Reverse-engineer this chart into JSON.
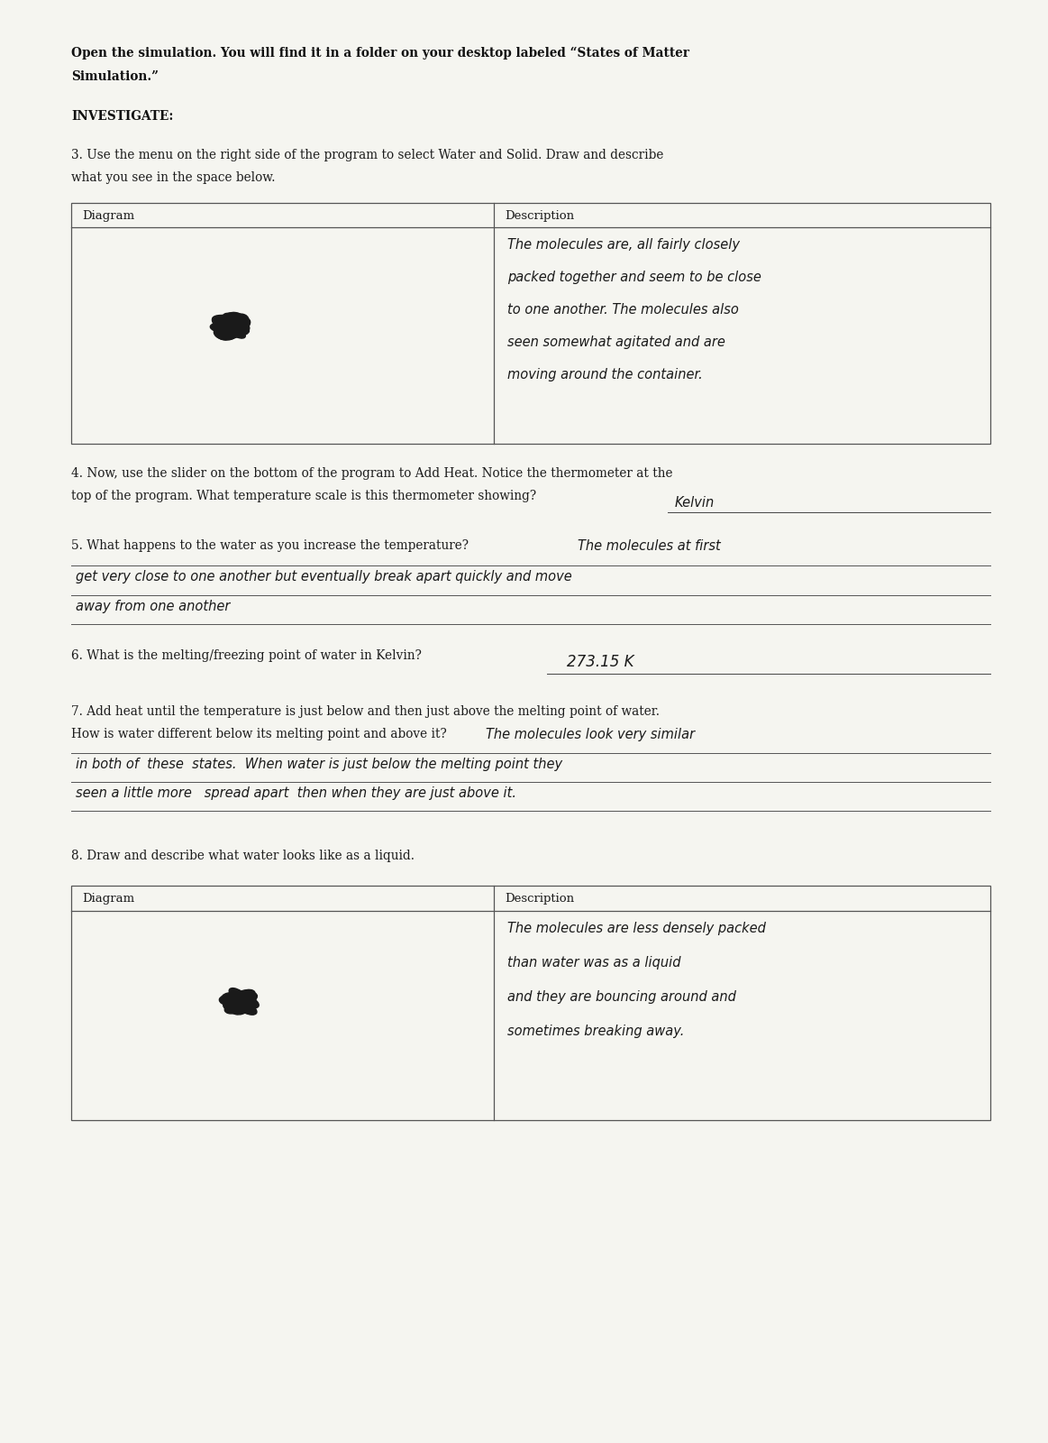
{
  "background_color": "#f5f5f0",
  "page_width": 11.63,
  "page_height": 16.0,
  "dpi": 100,
  "lm": 0.068,
  "rm": 0.945,
  "tc": "#1c1c1c",
  "hc": "#111111",
  "intro_line1": "Open the simulation. You will find it in a folder on your desktop labeled “States of Matter",
  "intro_line2": "Simulation.”",
  "investigate_label": "INVESTIGATE:",
  "q3_line1": "3. Use the menu on the right side of the program to select Water and Solid. Draw and describe",
  "q3_line2": "what you see in the space below.",
  "tbl1_hdr_left": "Diagram",
  "tbl1_hdr_right": "Description",
  "tbl1_desc_lines": [
    "The molecules are, all fairly closely",
    "packed together and seem to be close",
    "to one another. The molecules also",
    "seen somewhat agitated and are",
    "moving around the container."
  ],
  "q4_line1": "4. Now, use the slider on the bottom of the program to Add Heat. Notice the thermometer at the",
  "q4_line2": "top of the program. What temperature scale is this thermometer showing?",
  "q4_answer": "Kelvin",
  "q5_stem": "5. What happens to the water as you increase the temperature?",
  "q5_ans_line1": "The molecules at first",
  "q5_ans_line2": "get very close to one another but eventually break apart quickly and move",
  "q5_ans_line3": "away from one another",
  "q6_stem": "6. What is the melting/freezing point of water in Kelvin?",
  "q6_answer": "273.15 K",
  "q7_line1": "7. Add heat until the temperature is just below and then just above the melting point of water.",
  "q7_line2": "How is water different below its melting point and above it?",
  "q7_ans_inline": "The molecules look very similar",
  "q7_ans_line2": "in both of  these  states.  When water is just below the melting point they",
  "q7_ans_line3": "seen a little more   spread apart  then when they are just above it.",
  "q8_stem": "8. Draw and describe what water looks like as a liquid.",
  "tbl2_hdr_left": "Diagram",
  "tbl2_hdr_right": "Description",
  "tbl2_desc_lines": [
    "The molecules are less densely packed",
    "than water was as a liquid",
    "and they are bouncing around and",
    "sometimes breaking away."
  ]
}
